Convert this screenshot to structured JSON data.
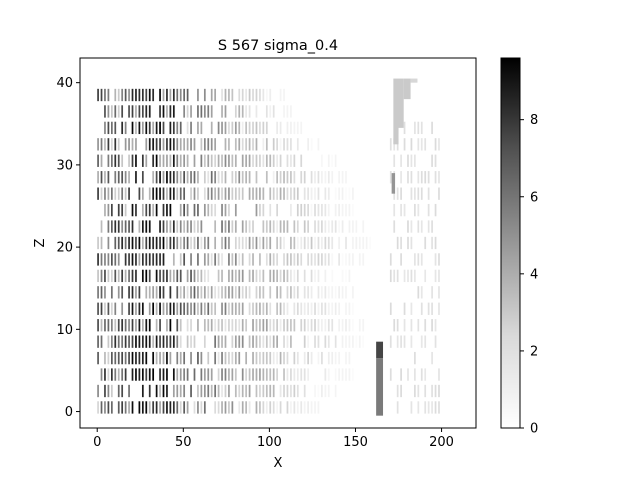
{
  "chart_data": {
    "type": "heatmap",
    "title": "S 567 sigma_0.4",
    "xlabel": "X",
    "ylabel": "Z",
    "xlim": [
      -10,
      220
    ],
    "ylim": [
      -2,
      43
    ],
    "xticks": [
      0,
      50,
      100,
      150,
      200
    ],
    "yticks": [
      0,
      10,
      20,
      30,
      40
    ],
    "grid": false,
    "colormap": "Greys",
    "colorbar": {
      "vmin": 0,
      "vmax": 9.6,
      "ticks": [
        0,
        2,
        4,
        6,
        8
      ]
    },
    "band_centers_z": [
      0.5,
      2.5,
      4.5,
      6.5,
      8.5,
      10.5,
      12.5,
      14.5,
      16.5,
      18.5,
      20.5,
      22.5,
      24.5,
      26.5,
      28.5,
      30.5,
      32.5,
      34.5,
      36.5,
      38.5
    ],
    "band_x_extent": [
      [
        0,
        130
      ],
      [
        0,
        140
      ],
      [
        0,
        150
      ],
      [
        0,
        150
      ],
      [
        0,
        155
      ],
      [
        0,
        155
      ],
      [
        0,
        150
      ],
      [
        0,
        150
      ],
      [
        0,
        150
      ],
      [
        0,
        155
      ],
      [
        0,
        160
      ],
      [
        0,
        155
      ],
      [
        0,
        150
      ],
      [
        0,
        150
      ],
      [
        0,
        145
      ],
      [
        0,
        140
      ],
      [
        0,
        130
      ],
      [
        0,
        120
      ],
      [
        0,
        115
      ],
      [
        0,
        110
      ]
    ],
    "dense_x_range": [
      20,
      45
    ],
    "peak_value": 9.6,
    "right_cluster": {
      "x_range": [
        170,
        200
      ],
      "z_range": [
        0,
        36
      ],
      "value": 1
    },
    "vertical_features": [
      {
        "x_range": [
          162,
          166
        ],
        "z_range": [
          -0.5,
          6.5
        ],
        "value": 5
      },
      {
        "x_range": [
          162,
          166
        ],
        "z_range": [
          6.5,
          8.5
        ],
        "value": 7
      },
      {
        "x_range": [
          172,
          175
        ],
        "z_range": [
          32.5,
          40.5
        ],
        "value": 2
      },
      {
        "x_range": [
          175,
          178
        ],
        "z_range": [
          34.5,
          40.5
        ],
        "value": 2
      },
      {
        "x_range": [
          178,
          182
        ],
        "z_range": [
          38,
          40.5
        ],
        "value": 2
      },
      {
        "x_range": [
          182,
          186
        ],
        "z_range": [
          40,
          40.5
        ],
        "value": 1.5
      },
      {
        "x_range": [
          171,
          173
        ],
        "z_range": [
          26.5,
          29
        ],
        "value": 4
      }
    ]
  }
}
